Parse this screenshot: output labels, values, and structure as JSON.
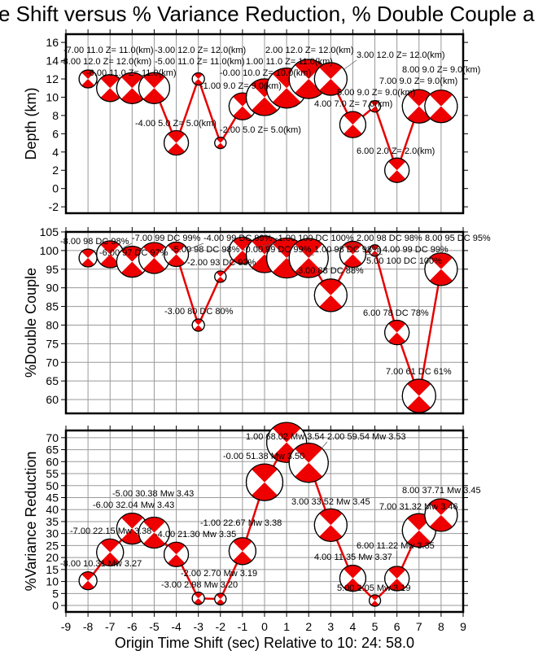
{
  "title": "e Shift versus % Variance Reduction, % Double Couple a",
  "colors": {
    "line": "#e60000",
    "beachball_fill": "#ee0000",
    "grid": "#999999",
    "frame": "#000000"
  },
  "chart_data": [
    {
      "type": "line",
      "panel": "depth",
      "ylabel": "Depth (km)",
      "ylim": [
        -2.7,
        16.9
      ],
      "yticks": [
        -2,
        0,
        2,
        4,
        6,
        8,
        10,
        12,
        14,
        16
      ],
      "horizontal_grid": false,
      "x": [
        -8,
        -7,
        -6,
        -5,
        -4,
        -3,
        -2,
        -1,
        0,
        1,
        2,
        3,
        4,
        5,
        6,
        7,
        8
      ],
      "values": [
        12,
        11,
        11,
        11,
        5,
        12,
        5,
        9,
        10,
        11,
        12,
        12,
        7,
        9,
        2,
        9,
        9
      ],
      "labels": [
        "-8.00 12.0 Z= 12.0(km)",
        "-7.00 11.0 Z= 11.0(km)",
        "-6.00 11.0 Z= 11.0(km)",
        "-5.00 11.0 Z= 11.0(km)",
        "-4.00 5.0 Z= 5.0(km)",
        "-3.00 12.0 Z= 12.0(km)",
        "-2.00 5.0 Z= 5.0(km)",
        "-1.00 9.0 Z= 9.0(km)",
        "-0.00 10.0 Z= 10.0(km)",
        "1.00 11.0 Z= 11.0(km)",
        "2.00 12.0 Z= 12.0(km)",
        "3.00 12.0 Z= 12.0(km)",
        "4.00 7.0 Z= 7.0(km)",
        "5.00 9.0 Z= 9.0(km)",
        "6.00 2.0 Z= 2.0(km)",
        "7.00 9.0 Z= 9.0(km)",
        "8.00 9.0 Z= 9.0(km)"
      ]
    },
    {
      "type": "line",
      "panel": "double_couple",
      "ylabel": "%Double Couple",
      "ylim": [
        56.3,
        105
      ],
      "yticks": [
        60,
        65,
        70,
        75,
        80,
        85,
        90,
        95,
        100,
        105
      ],
      "horizontal_grid": true,
      "x": [
        -8,
        -7,
        -6,
        -5,
        -4,
        -3,
        -2,
        -1,
        0,
        1,
        2,
        3,
        4,
        5,
        6,
        7,
        8
      ],
      "values": [
        98,
        99,
        97,
        98,
        99,
        80,
        93,
        100,
        99,
        98,
        98,
        88,
        99,
        100,
        78,
        61,
        95
      ],
      "labels": [
        "-8.00 98 DC 98%",
        "-7.00 99 DC 99%",
        "-6.00 97 DC 97%",
        "-5.00 98 DC 98%",
        "-4.00 99 DC 99%",
        "-3.00 80 DC 80%",
        "-2.00 93 DC 93%",
        "-1.00 100 DC 100%",
        "-0.00 99 DC 99%",
        "1.00 98 DC 98%",
        "2.00 98 DC 98%",
        "3.00 88 DC 88%",
        "4.00 99 DC 99%",
        "5.00 100 DC 100%",
        "6.00 78 DC 78%",
        "7.00 61 DC 61%",
        "8.00 95 DC 95%"
      ]
    },
    {
      "type": "line",
      "panel": "variance_reduction",
      "ylabel": "%Variance Reduction",
      "xlabel": "Origin Time Shift (sec) Relative to 10: 24: 58.0",
      "xlim": [
        -9,
        9
      ],
      "xticks": [
        -9,
        -8,
        -7,
        -6,
        -5,
        -4,
        -3,
        -2,
        -1,
        0,
        1,
        2,
        3,
        4,
        5,
        6,
        7,
        8,
        9
      ],
      "ylim": [
        -2.7,
        73
      ],
      "yticks": [
        0,
        5,
        10,
        15,
        20,
        25,
        30,
        35,
        40,
        45,
        50,
        55,
        60,
        65,
        70
      ],
      "horizontal_grid": true,
      "x": [
        -8,
        -7,
        -6,
        -5,
        -4,
        -3,
        -2,
        -1,
        0,
        1,
        2,
        3,
        4,
        5,
        6,
        7,
        8
      ],
      "values": [
        10.31,
        22.15,
        32.04,
        30.38,
        21.3,
        2.98,
        2.7,
        22.67,
        51.38,
        68.02,
        59.54,
        33.52,
        11.35,
        2.05,
        11.22,
        31.32,
        37.71
      ],
      "mw": [
        3.27,
        3.38,
        3.43,
        3.43,
        3.35,
        3.2,
        3.19,
        3.38,
        3.5,
        3.54,
        3.53,
        3.45,
        3.37,
        3.19,
        3.35,
        3.46,
        3.45
      ],
      "labels": [
        "-8.00 10.31 Mw 3.27",
        "-7.00 22.15 Mw 3.38",
        "-6.00 32.04 Mw 3.43",
        "-5.00 30.38 Mw 3.43",
        "-4.00 21.30 Mw 3.35",
        "-3.00 2.98 Mw 3.20",
        "-2.00 2.70 Mw 3.19",
        "-1.00 22.67 Mw 3.38",
        "-0.00 51.38 Mw 3.50",
        "1.00 68.02 Mw 3.54",
        "2.00 59.54 Mw 3.53",
        "3.00 33.52 Mw 3.45",
        "4.00 11.35 Mw 3.37",
        "5.00 2.05 Mw 3.19",
        "6.00 11.22 Mw 3.35",
        "7.00 31.32 Mw 3.46",
        "8.00 37.71 Mw 3.45"
      ]
    }
  ]
}
